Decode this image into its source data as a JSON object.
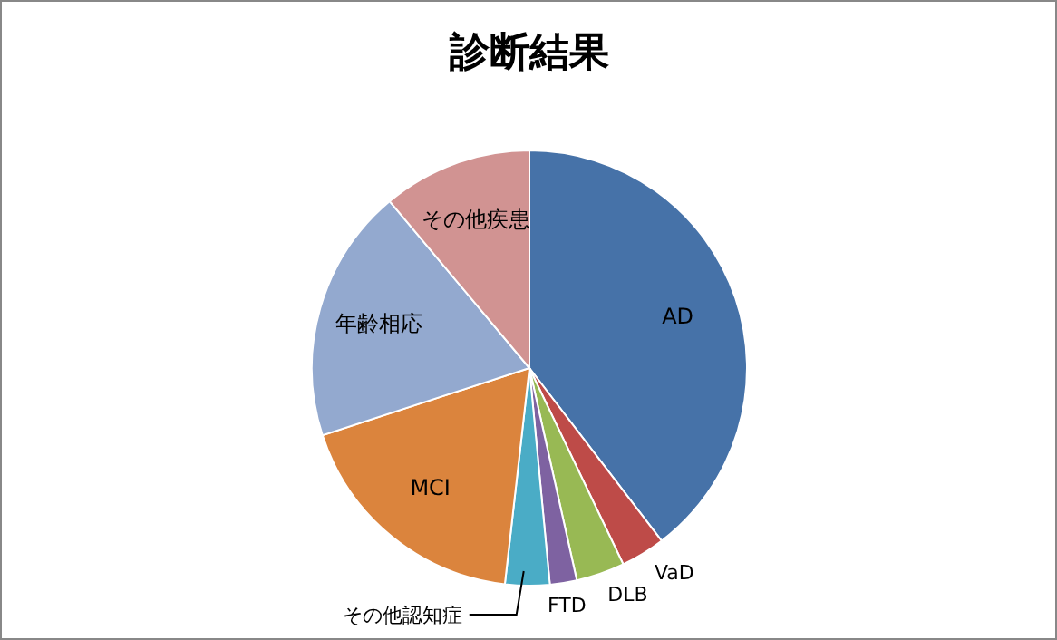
{
  "chart_data": {
    "type": "pie",
    "title": "診断結果",
    "categories": [
      "AD",
      "VaD",
      "DLB",
      "FTD",
      "その他認知症",
      "MCI",
      "年齢相応",
      "その他疾患"
    ],
    "values": [
      39.6,
      3.3,
      3.6,
      2,
      3.3,
      18.2,
      18.9,
      11.1
    ],
    "colors": [
      "#4672a8",
      "#be4b48",
      "#98b954",
      "#7e62a1",
      "#4aacc6",
      "#db843d",
      "#93a9cf",
      "#d19392"
    ]
  }
}
